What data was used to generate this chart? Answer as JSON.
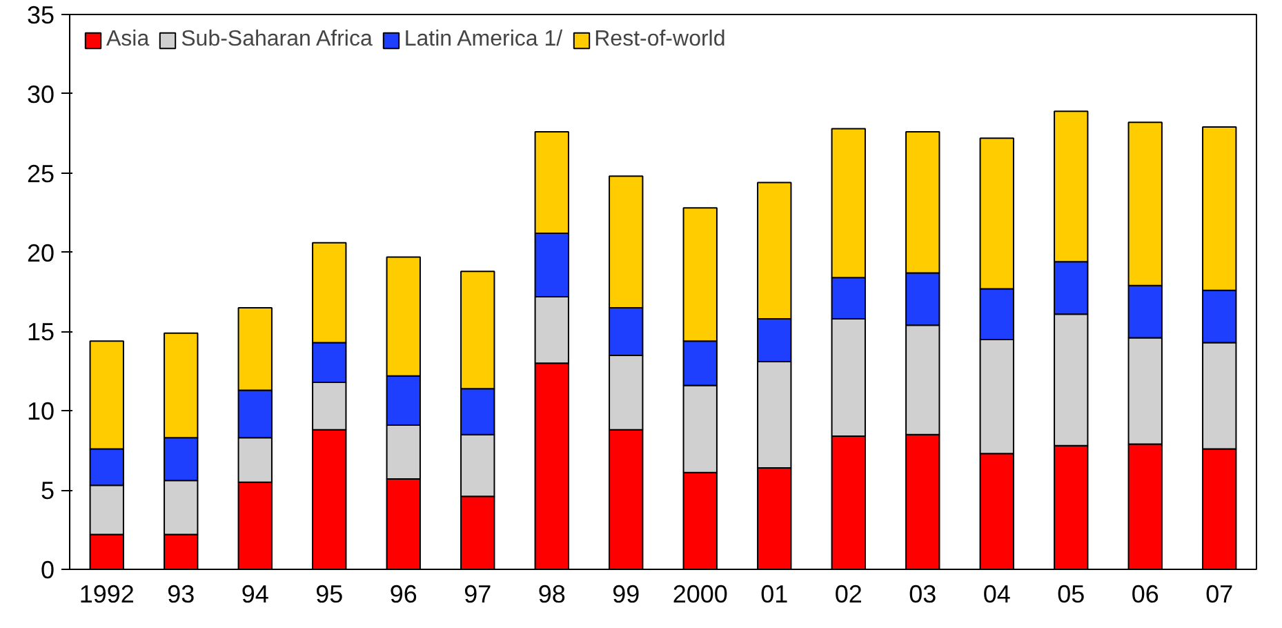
{
  "chart_data": {
    "type": "bar",
    "stacked": true,
    "categories": [
      "1992",
      "93",
      "94",
      "95",
      "96",
      "97",
      "98",
      "99",
      "2000",
      "01",
      "02",
      "03",
      "04",
      "05",
      "06",
      "07"
    ],
    "series": [
      {
        "name": "Asia",
        "color": "#ff0000",
        "values": [
          2.2,
          2.2,
          5.5,
          8.8,
          5.7,
          4.6,
          13.0,
          8.8,
          6.1,
          6.4,
          8.4,
          8.5,
          7.3,
          7.8,
          7.9,
          7.6
        ]
      },
      {
        "name": "Sub-Saharan Africa",
        "color": "#d0d0d0",
        "values": [
          3.1,
          3.4,
          2.8,
          3.0,
          3.4,
          3.9,
          4.2,
          4.7,
          5.5,
          6.7,
          7.4,
          6.9,
          7.2,
          8.3,
          6.7,
          6.7
        ]
      },
      {
        "name": "Latin America 1/",
        "color": "#1f3fff",
        "values": [
          2.3,
          2.7,
          3.0,
          2.5,
          3.1,
          2.9,
          4.0,
          3.0,
          2.8,
          2.7,
          2.6,
          3.3,
          3.2,
          3.3,
          3.3,
          3.3
        ]
      },
      {
        "name": "Rest-of-world",
        "color": "#ffcc00",
        "values": [
          6.8,
          6.6,
          5.2,
          6.3,
          7.5,
          7.4,
          6.4,
          8.3,
          8.4,
          8.6,
          9.4,
          8.9,
          9.5,
          9.5,
          10.3,
          10.3
        ]
      }
    ],
    "ylim": [
      0,
      35
    ],
    "yticks": [
      0,
      5,
      10,
      15,
      20,
      25,
      30,
      35
    ],
    "grid": false,
    "legend": "top left"
  }
}
